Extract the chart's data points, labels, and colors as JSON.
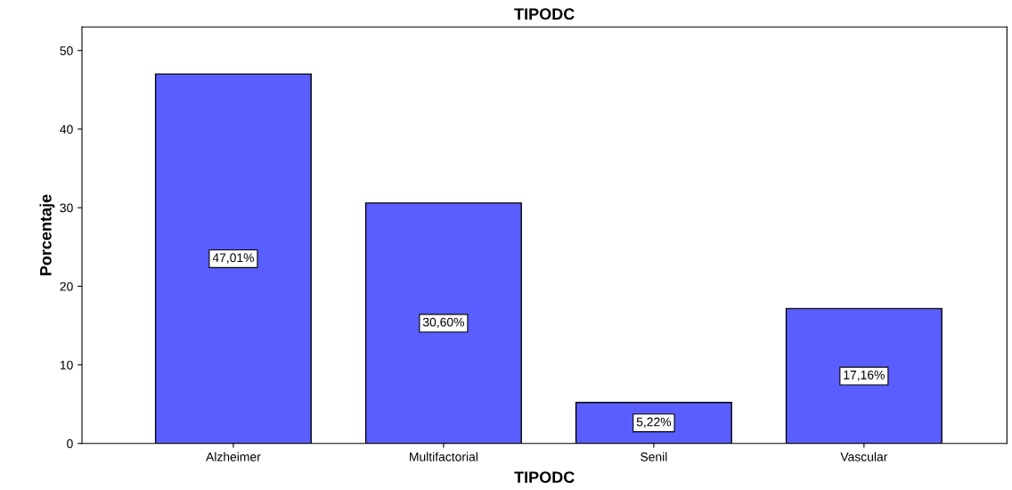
{
  "chart_data": {
    "type": "bar",
    "title": "TIPODC",
    "xlabel": "TIPODC",
    "ylabel": "Porcentaje",
    "categories": [
      "Alzheimer",
      "Multifactorial",
      "Senil",
      "Vascular"
    ],
    "values": [
      47.01,
      30.6,
      5.22,
      17.16
    ],
    "value_labels": [
      "47,01%",
      "30,60%",
      "5,22%",
      "17,16%"
    ],
    "color": "#5a5eff",
    "ylim": [
      0,
      53
    ],
    "yticks": [
      0,
      10,
      20,
      30,
      40,
      50
    ],
    "grid": false
  }
}
